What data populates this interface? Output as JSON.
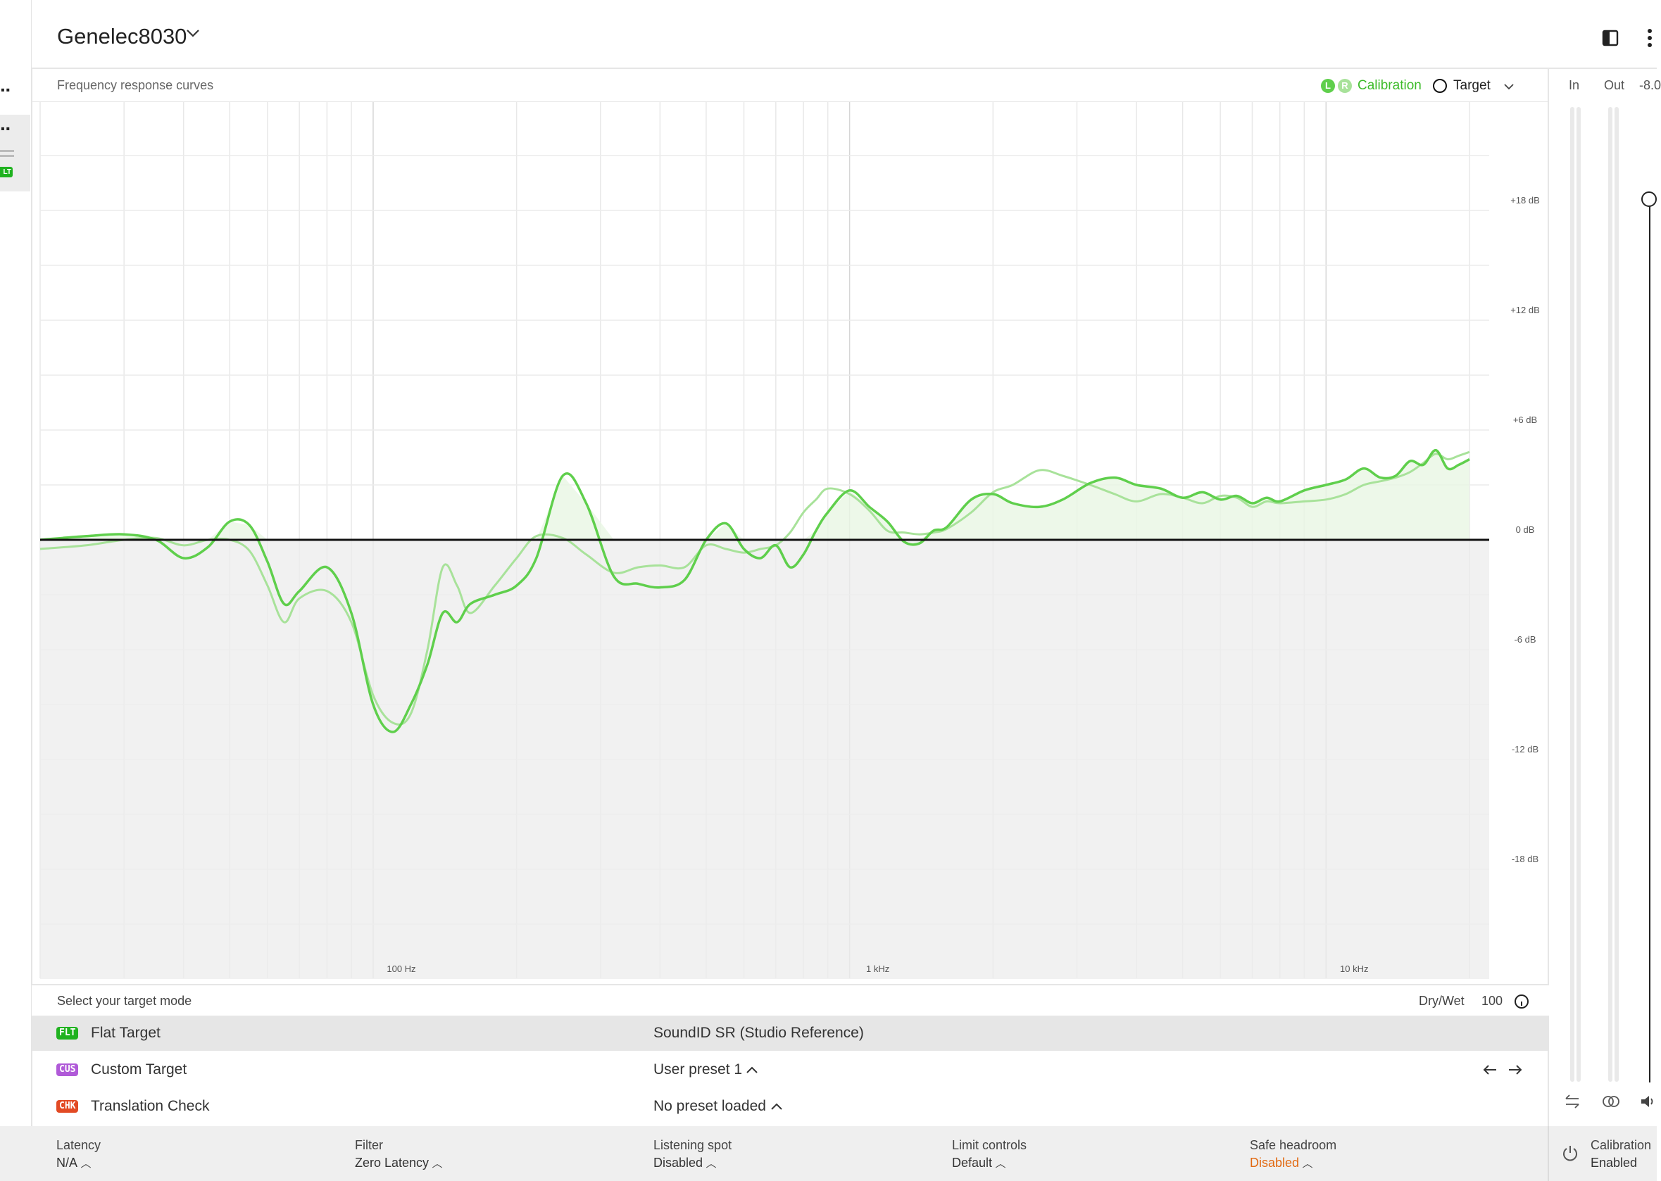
{
  "header": {
    "device_title": "Genelec8030",
    "left_badge": "LT"
  },
  "chart": {
    "title": "Frequency response curves",
    "legend": {
      "left_dot": "L",
      "right_dot": "R",
      "calibration_label": "Calibration",
      "target_label": "Target"
    }
  },
  "chart_data": {
    "type": "line",
    "title": "Frequency response curves",
    "x_scale": "log",
    "xlim": [
      20,
      22000
    ],
    "ylim": [
      -24,
      24
    ],
    "x_tick_labels": [
      "100 Hz",
      "1 kHz",
      "10 kHz"
    ],
    "y_tick_labels": [
      "+18 dB",
      "+12 dB",
      "+6 dB",
      "0 dB",
      "-6 dB",
      "-12 dB",
      "-18 dB"
    ],
    "colors": {
      "left": "#5fcf4c",
      "right": "#a8e29a",
      "target": "#111111"
    },
    "series": [
      {
        "name": "L",
        "x": [
          20,
          25,
          30,
          35,
          40,
          45,
          50,
          55,
          60,
          65,
          70,
          80,
          90,
          100,
          110,
          120,
          130,
          140,
          150,
          160,
          180,
          200,
          220,
          250,
          280,
          320,
          360,
          400,
          450,
          500,
          550,
          600,
          650,
          700,
          750,
          800,
          850,
          900,
          1000,
          1100,
          1200,
          1300,
          1400,
          1500,
          1600,
          1800,
          2000,
          2200,
          2500,
          2800,
          3200,
          3600,
          4000,
          4500,
          5000,
          5500,
          6000,
          6500,
          7000,
          7500,
          8000,
          9000,
          10000,
          11000,
          12000,
          13000,
          14000,
          15000,
          16000,
          17000,
          18000,
          19000,
          20000
        ],
        "y": [
          0,
          0.2,
          0.3,
          0,
          -1,
          -0.4,
          1,
          0.8,
          -1.2,
          -3.5,
          -2.8,
          -1.5,
          -4,
          -9,
          -10.5,
          -9,
          -6.8,
          -4,
          -4.5,
          -3.5,
          -3,
          -2.5,
          -1,
          3.5,
          2,
          -2,
          -2.4,
          -2.6,
          -2.2,
          0,
          0.9,
          -0.5,
          -1,
          -0.3,
          -1.5,
          -0.8,
          0.5,
          1.5,
          2.7,
          1.8,
          1,
          -0.1,
          -0.2,
          0.5,
          0.7,
          2.2,
          2.5,
          2.0,
          1.8,
          2.2,
          3.1,
          3.4,
          3.0,
          2.8,
          2.3,
          2.6,
          2.2,
          2.4,
          2.0,
          2.3,
          2.1,
          2.7,
          3.0,
          3.3,
          3.9,
          3.4,
          3.5,
          4.3,
          4.1,
          4.9,
          3.9,
          4.1,
          4.4
        ]
      },
      {
        "name": "R",
        "x": [
          20,
          25,
          30,
          35,
          40,
          45,
          50,
          55,
          60,
          65,
          70,
          80,
          90,
          100,
          110,
          120,
          130,
          140,
          150,
          160,
          180,
          200,
          220,
          250,
          280,
          320,
          360,
          400,
          450,
          500,
          550,
          600,
          650,
          700,
          750,
          800,
          850,
          900,
          1000,
          1100,
          1200,
          1300,
          1400,
          1500,
          1600,
          1800,
          2000,
          2200,
          2500,
          2800,
          3200,
          3600,
          4000,
          4500,
          5000,
          5500,
          6000,
          6500,
          7000,
          7500,
          8000,
          9000,
          10000,
          11000,
          12000,
          13000,
          14000,
          15000,
          16000,
          17000,
          18000,
          19000,
          20000
        ],
        "y": [
          -0.5,
          -0.3,
          0,
          0.1,
          -0.3,
          0,
          0,
          -0.6,
          -2.5,
          -4.5,
          -3.2,
          -2.8,
          -4.5,
          -8.5,
          -10,
          -9.5,
          -6,
          -1.5,
          -2.5,
          -4,
          -2.5,
          -1,
          0.2,
          0.1,
          -0.8,
          -1.8,
          -1.5,
          -1.4,
          -1.5,
          -0.3,
          -0.5,
          -0.7,
          -0.5,
          -0.3,
          0.4,
          1.5,
          2.2,
          2.8,
          2.5,
          1.6,
          0.5,
          0.4,
          0.3,
          0.4,
          0.6,
          1.5,
          2.6,
          3.0,
          3.8,
          3.5,
          3.0,
          2.5,
          2.1,
          2.5,
          2.3,
          2.0,
          2.4,
          2.3,
          1.8,
          2.1,
          2.0,
          2.1,
          2.2,
          2.5,
          3.0,
          3.2,
          3.4,
          3.7,
          4.2,
          4.7,
          4.4,
          4.6,
          4.8
        ]
      },
      {
        "name": "Target",
        "x": [
          20,
          22000
        ],
        "y": [
          0,
          0
        ]
      }
    ]
  },
  "right_panel": {
    "in_label": "In",
    "out_label": "Out",
    "gain_value": "-8.0"
  },
  "mode_panel": {
    "title": "Select your target mode",
    "drywet_label": "Dry/Wet",
    "drywet_value": "100",
    "rows": [
      {
        "badge": "FLT",
        "badge_color": "#1fb21f",
        "label": "Flat Target",
        "value": "SoundID SR (Studio Reference)",
        "selected": true
      },
      {
        "badge": "CUS",
        "badge_color": "#b05ad8",
        "label": "Custom Target",
        "value": "User preset 1",
        "selected": false
      },
      {
        "badge": "CHK",
        "badge_color": "#e24a24",
        "label": "Translation Check",
        "value": "No preset loaded",
        "selected": false
      }
    ]
  },
  "status_bar": {
    "items": [
      {
        "label": "Latency",
        "value": "N/A",
        "value_color": "#333333"
      },
      {
        "label": "Filter",
        "value": "Zero Latency",
        "value_color": "#333333"
      },
      {
        "label": "Listening spot",
        "value": "Disabled",
        "value_color": "#333333"
      },
      {
        "label": "Limit controls",
        "value": "Default",
        "value_color": "#333333"
      },
      {
        "label": "Safe headroom",
        "value": "Disabled",
        "value_color": "#e26a12"
      }
    ],
    "calibration_label": "Calibration",
    "calibration_value": "Enabled"
  }
}
